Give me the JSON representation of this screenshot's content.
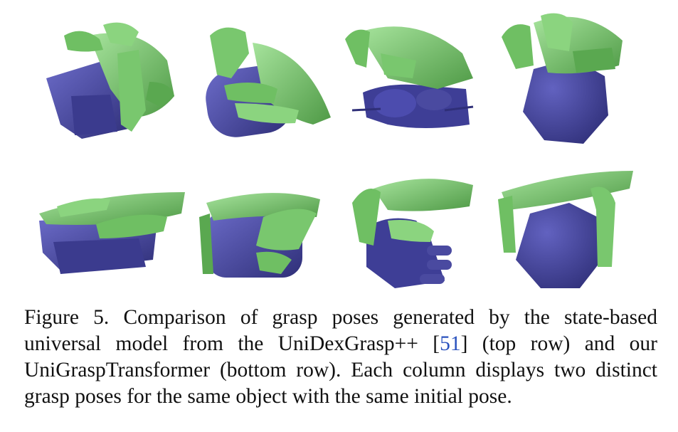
{
  "figure": {
    "colors": {
      "hand": "#79c76e",
      "hand_dark": "#4f9a46",
      "object": "#4a4aa0",
      "object_dark": "#2f2f78",
      "citation": "#2a52be"
    },
    "rows": [
      {
        "name": "top-row",
        "cells": [
          "grasp-1",
          "grasp-2",
          "grasp-3",
          "grasp-4"
        ]
      },
      {
        "name": "bottom-row",
        "cells": [
          "grasp-1",
          "grasp-2",
          "grasp-3",
          "grasp-4"
        ]
      }
    ]
  },
  "caption": {
    "part1": "Figure 5. Comparison of grasp poses generated by the state-based universal model from the UniDexGrasp++ [",
    "citation": "51",
    "part2": "] (top row) and our UniGraspTransformer (bottom row).  Each column displays two distinct grasp poses for the same object with the same initial pose."
  }
}
